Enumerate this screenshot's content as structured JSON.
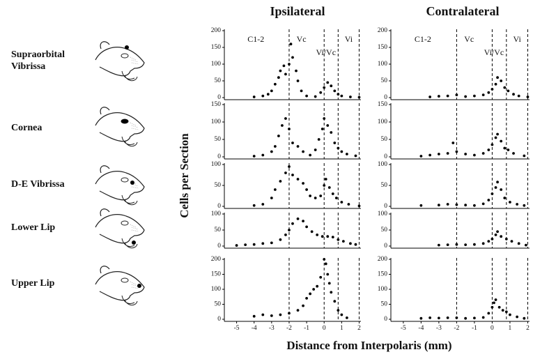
{
  "column_titles": [
    "Ipsilateral",
    "Contralateral"
  ],
  "row_labels": [
    "Supraorbital Vibrissa",
    "Cornea",
    "D-E Vibrissa",
    "Lower Lip",
    "Upper Lip"
  ],
  "y_label": "Cells per Section",
  "x_label": "Distance from Interpolaris (mm)",
  "chart_data": [
    {
      "type": "scatter",
      "xlim": [
        -5.7,
        2.1
      ],
      "ylim": [
        0,
        200
      ],
      "yticks": [
        0,
        50,
        100,
        150,
        200
      ],
      "boundaries": [
        -2,
        0,
        0.8,
        2
      ],
      "region_labels": [
        "C1-2",
        "Vc",
        "Vi/Vc",
        "Vi"
      ],
      "x": [
        -4,
        -3.5,
        -3.2,
        -3,
        -2.8,
        -2.6,
        -2.5,
        -2.3,
        -2.2,
        -2,
        -1.9,
        -1.8,
        -1.6,
        -1.5,
        -1.3,
        -1,
        -0.5,
        -0.2,
        0,
        0.2,
        0.4,
        0.6,
        0.8,
        1,
        1.5,
        2
      ],
      "y": [
        2,
        5,
        10,
        20,
        40,
        60,
        80,
        95,
        70,
        100,
        160,
        120,
        80,
        50,
        20,
        5,
        3,
        15,
        30,
        45,
        35,
        20,
        10,
        5,
        2,
        1
      ]
    },
    {
      "type": "scatter",
      "xlim": [
        -5.7,
        2.1
      ],
      "ylim": [
        0,
        200
      ],
      "yticks": [
        0,
        50,
        100,
        150,
        200
      ],
      "boundaries": [
        -2,
        0,
        0.8,
        2
      ],
      "region_labels": [
        "C1-2",
        "Vc",
        "Vi/Vc",
        "Vi"
      ],
      "x": [
        -3.5,
        -3,
        -2.5,
        -2,
        -1.5,
        -1,
        -0.5,
        -0.2,
        0,
        0.2,
        0.3,
        0.5,
        0.7,
        0.9,
        1.2,
        1.5,
        2
      ],
      "y": [
        2,
        4,
        5,
        8,
        3,
        5,
        8,
        15,
        25,
        40,
        60,
        50,
        30,
        20,
        10,
        5,
        2
      ]
    },
    {
      "type": "scatter",
      "xlim": [
        -5.7,
        2.1
      ],
      "ylim": [
        0,
        150
      ],
      "yticks": [
        0,
        50,
        100,
        150
      ],
      "boundaries": [
        -2,
        0,
        0.8,
        2
      ],
      "x": [
        -4,
        -3.5,
        -3,
        -2.8,
        -2.6,
        -2.4,
        -2.2,
        -2,
        -1.8,
        -1.5,
        -1.2,
        -0.8,
        -0.5,
        -0.3,
        -0.1,
        0,
        0.2,
        0.4,
        0.6,
        0.8,
        1,
        1.3,
        1.8
      ],
      "y": [
        2,
        5,
        15,
        30,
        60,
        90,
        110,
        80,
        40,
        30,
        15,
        5,
        20,
        50,
        80,
        110,
        90,
        70,
        40,
        25,
        15,
        8,
        3
      ]
    },
    {
      "type": "scatter",
      "xlim": [
        -5.7,
        2.1
      ],
      "ylim": [
        0,
        150
      ],
      "yticks": [
        0,
        50,
        100,
        150
      ],
      "boundaries": [
        -2,
        0,
        0.8,
        2
      ],
      "x": [
        -4,
        -3.5,
        -3,
        -2.5,
        -2.2,
        -2,
        -1.5,
        -1,
        -0.5,
        -0.2,
        0,
        0.2,
        0.3,
        0.5,
        0.7,
        0.9,
        1.2,
        1.8
      ],
      "y": [
        2,
        5,
        8,
        10,
        40,
        15,
        8,
        5,
        10,
        20,
        35,
        55,
        65,
        45,
        25,
        20,
        10,
        3
      ]
    },
    {
      "type": "scatter",
      "xlim": [
        -5.7,
        2.1
      ],
      "ylim": [
        0,
        100
      ],
      "yticks": [
        0,
        50,
        100
      ],
      "boundaries": [
        -2,
        0,
        0.8,
        2
      ],
      "x": [
        -4,
        -3.5,
        -3,
        -2.8,
        -2.5,
        -2.2,
        -2,
        -1.8,
        -1.5,
        -1.2,
        -1,
        -0.8,
        -0.5,
        -0.2,
        0,
        0.1,
        0.3,
        0.5,
        0.7,
        1,
        1.4,
        2
      ],
      "y": [
        2,
        5,
        20,
        40,
        60,
        80,
        95,
        75,
        65,
        55,
        40,
        25,
        20,
        25,
        50,
        65,
        45,
        30,
        20,
        10,
        5,
        1
      ]
    },
    {
      "type": "scatter",
      "xlim": [
        -5.7,
        2.1
      ],
      "ylim": [
        0,
        100
      ],
      "yticks": [
        0,
        50,
        100
      ],
      "boundaries": [
        -2,
        0,
        0.8,
        2
      ],
      "x": [
        -4,
        -3,
        -2.5,
        -2,
        -1.5,
        -1,
        -0.5,
        -0.2,
        0,
        0.2,
        0.3,
        0.5,
        0.7,
        1,
        1.4,
        1.8
      ],
      "y": [
        2,
        3,
        5,
        4,
        3,
        2,
        6,
        15,
        30,
        45,
        58,
        40,
        20,
        10,
        5,
        2
      ]
    },
    {
      "type": "scatter",
      "xlim": [
        -5.7,
        2.1
      ],
      "ylim": [
        0,
        100
      ],
      "yticks": [
        0,
        50,
        100
      ],
      "boundaries": [
        -2,
        0,
        0.8,
        2
      ],
      "x": [
        -5,
        -4.5,
        -4,
        -3.5,
        -3,
        -2.5,
        -2.2,
        -2,
        -1.8,
        -1.5,
        -1.2,
        -1,
        -0.7,
        -0.4,
        -0.1,
        0.2,
        0.5,
        0.8,
        1.1,
        1.5,
        1.8
      ],
      "y": [
        2,
        4,
        5,
        8,
        10,
        20,
        35,
        50,
        70,
        85,
        78,
        60,
        45,
        35,
        30,
        30,
        28,
        20,
        15,
        8,
        5
      ]
    },
    {
      "type": "scatter",
      "xlim": [
        -5.7,
        2.1
      ],
      "ylim": [
        0,
        100
      ],
      "yticks": [
        0,
        50,
        100
      ],
      "boundaries": [
        -2,
        0,
        0.8,
        2
      ],
      "x": [
        -3,
        -2.5,
        -2,
        -1.5,
        -1,
        -0.5,
        -0.2,
        0,
        0.2,
        0.3,
        0.5,
        0.8,
        1.1,
        1.5,
        1.9
      ],
      "y": [
        3,
        4,
        5,
        4,
        5,
        8,
        15,
        22,
        35,
        45,
        30,
        22,
        15,
        8,
        3
      ]
    },
    {
      "type": "scatter",
      "xlim": [
        -5.7,
        2.1
      ],
      "ylim": [
        0,
        200
      ],
      "yticks": [
        0,
        50,
        100,
        150,
        200
      ],
      "xticks": [
        -5,
        -4,
        -3,
        -2,
        -1,
        0,
        1,
        2
      ],
      "boundaries": [
        -2,
        0,
        0.8,
        2
      ],
      "x": [
        -4,
        -3.5,
        -3,
        -2.5,
        -2,
        -1.5,
        -1.2,
        -1,
        -0.8,
        -0.6,
        -0.4,
        -0.2,
        0,
        0.1,
        0.2,
        0.3,
        0.4,
        0.6,
        0.8,
        1,
        1.3
      ],
      "y": [
        10,
        15,
        12,
        15,
        20,
        30,
        45,
        70,
        85,
        100,
        110,
        140,
        200,
        185,
        150,
        120,
        90,
        60,
        30,
        15,
        5
      ]
    },
    {
      "type": "scatter",
      "xlim": [
        -5.7,
        2.1
      ],
      "ylim": [
        0,
        200
      ],
      "yticks": [
        0,
        50,
        100,
        150,
        200
      ],
      "xticks": [
        -5,
        -4,
        -3,
        -2,
        -1,
        0,
        1,
        2
      ],
      "boundaries": [
        -2,
        0,
        0.8,
        2
      ],
      "x": [
        -4,
        -3.5,
        -3,
        -2.5,
        -2,
        -1.5,
        -1,
        -0.5,
        -0.2,
        0,
        0.1,
        0.2,
        0.4,
        0.6,
        0.8,
        1,
        1.4,
        1.8
      ],
      "y": [
        3,
        5,
        4,
        5,
        5,
        3,
        4,
        6,
        20,
        40,
        55,
        65,
        40,
        30,
        25,
        15,
        8,
        3
      ]
    }
  ]
}
